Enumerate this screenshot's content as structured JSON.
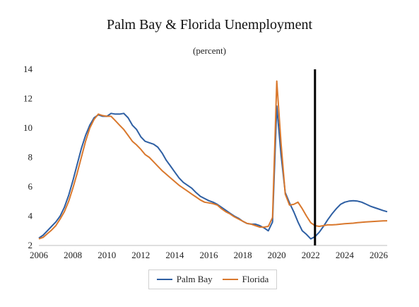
{
  "chart_data": {
    "type": "line",
    "title": "Palm Bay & Florida Unemployment",
    "subtitle": "(percent)",
    "xlabel": "",
    "ylabel": "",
    "xlim": [
      2006,
      2026.5
    ],
    "ylim": [
      2,
      14
    ],
    "x_ticks": [
      "2006",
      "2008",
      "2010",
      "2012",
      "2014",
      "2016",
      "2018",
      "2020",
      "2022",
      "2024",
      "2026"
    ],
    "y_ticks": [
      "2",
      "4",
      "6",
      "8",
      "10",
      "12",
      "14"
    ],
    "grid": false,
    "legend_position": "bottom-center",
    "vertical_marker_x": 2022.25,
    "series": [
      {
        "name": "Palm Bay",
        "color": "#2e5fa3",
        "points": [
          [
            2006.0,
            2.5
          ],
          [
            2006.25,
            2.7
          ],
          [
            2006.5,
            3.0
          ],
          [
            2006.75,
            3.3
          ],
          [
            2007.0,
            3.6
          ],
          [
            2007.25,
            4.0
          ],
          [
            2007.5,
            4.6
          ],
          [
            2007.75,
            5.4
          ],
          [
            2008.0,
            6.4
          ],
          [
            2008.25,
            7.5
          ],
          [
            2008.5,
            8.6
          ],
          [
            2008.75,
            9.5
          ],
          [
            2009.0,
            10.2
          ],
          [
            2009.25,
            10.7
          ],
          [
            2009.5,
            10.9
          ],
          [
            2009.75,
            10.8
          ],
          [
            2010.0,
            10.8
          ],
          [
            2010.25,
            11.0
          ],
          [
            2010.5,
            10.95
          ],
          [
            2010.75,
            10.95
          ],
          [
            2011.0,
            11.0
          ],
          [
            2011.25,
            10.7
          ],
          [
            2011.5,
            10.2
          ],
          [
            2011.75,
            9.9
          ],
          [
            2012.0,
            9.4
          ],
          [
            2012.25,
            9.1
          ],
          [
            2012.5,
            9.0
          ],
          [
            2012.75,
            8.9
          ],
          [
            2013.0,
            8.7
          ],
          [
            2013.25,
            8.3
          ],
          [
            2013.5,
            7.8
          ],
          [
            2013.75,
            7.4
          ],
          [
            2014.0,
            7.0
          ],
          [
            2014.25,
            6.6
          ],
          [
            2014.5,
            6.3
          ],
          [
            2014.75,
            6.1
          ],
          [
            2015.0,
            5.9
          ],
          [
            2015.25,
            5.6
          ],
          [
            2015.5,
            5.35
          ],
          [
            2015.75,
            5.2
          ],
          [
            2016.0,
            5.05
          ],
          [
            2016.25,
            4.95
          ],
          [
            2016.5,
            4.8
          ],
          [
            2016.75,
            4.6
          ],
          [
            2017.0,
            4.4
          ],
          [
            2017.25,
            4.2
          ],
          [
            2017.5,
            4.0
          ],
          [
            2017.75,
            3.85
          ],
          [
            2018.0,
            3.65
          ],
          [
            2018.25,
            3.5
          ],
          [
            2018.5,
            3.45
          ],
          [
            2018.75,
            3.45
          ],
          [
            2019.0,
            3.35
          ],
          [
            2019.25,
            3.2
          ],
          [
            2019.5,
            3.0
          ],
          [
            2019.75,
            3.6
          ],
          [
            2020.0,
            11.5
          ],
          [
            2020.25,
            8.2
          ],
          [
            2020.5,
            5.6
          ],
          [
            2020.75,
            4.9
          ],
          [
            2021.0,
            4.3
          ],
          [
            2021.25,
            3.6
          ],
          [
            2021.5,
            3.0
          ],
          [
            2021.75,
            2.75
          ],
          [
            2022.0,
            2.45
          ],
          [
            2022.25,
            2.6
          ],
          [
            2022.5,
            2.9
          ],
          [
            2022.75,
            3.3
          ],
          [
            2023.0,
            3.75
          ],
          [
            2023.25,
            4.15
          ],
          [
            2023.5,
            4.5
          ],
          [
            2023.75,
            4.8
          ],
          [
            2024.0,
            4.95
          ],
          [
            2024.25,
            5.02
          ],
          [
            2024.5,
            5.05
          ],
          [
            2024.75,
            5.02
          ],
          [
            2025.0,
            4.95
          ],
          [
            2025.25,
            4.82
          ],
          [
            2025.5,
            4.68
          ],
          [
            2025.75,
            4.58
          ],
          [
            2026.0,
            4.48
          ],
          [
            2026.25,
            4.38
          ],
          [
            2026.5,
            4.3
          ]
        ]
      },
      {
        "name": "Florida",
        "color": "#d9782d",
        "points": [
          [
            2006.0,
            2.45
          ],
          [
            2006.25,
            2.55
          ],
          [
            2006.5,
            2.8
          ],
          [
            2006.75,
            3.05
          ],
          [
            2007.0,
            3.35
          ],
          [
            2007.25,
            3.8
          ],
          [
            2007.5,
            4.3
          ],
          [
            2007.75,
            5.0
          ],
          [
            2008.0,
            5.9
          ],
          [
            2008.25,
            6.9
          ],
          [
            2008.5,
            8.0
          ],
          [
            2008.75,
            9.1
          ],
          [
            2009.0,
            10.0
          ],
          [
            2009.25,
            10.6
          ],
          [
            2009.5,
            10.95
          ],
          [
            2009.75,
            10.85
          ],
          [
            2010.0,
            10.8
          ],
          [
            2010.25,
            10.8
          ],
          [
            2010.5,
            10.5
          ],
          [
            2010.75,
            10.2
          ],
          [
            2011.0,
            9.9
          ],
          [
            2011.25,
            9.5
          ],
          [
            2011.5,
            9.1
          ],
          [
            2011.75,
            8.85
          ],
          [
            2012.0,
            8.55
          ],
          [
            2012.25,
            8.2
          ],
          [
            2012.5,
            8.0
          ],
          [
            2012.75,
            7.7
          ],
          [
            2013.0,
            7.4
          ],
          [
            2013.25,
            7.1
          ],
          [
            2013.5,
            6.85
          ],
          [
            2013.75,
            6.6
          ],
          [
            2014.0,
            6.35
          ],
          [
            2014.25,
            6.1
          ],
          [
            2014.5,
            5.9
          ],
          [
            2014.75,
            5.7
          ],
          [
            2015.0,
            5.5
          ],
          [
            2015.25,
            5.3
          ],
          [
            2015.5,
            5.1
          ],
          [
            2015.75,
            4.95
          ],
          [
            2016.0,
            4.9
          ],
          [
            2016.25,
            4.85
          ],
          [
            2016.5,
            4.75
          ],
          [
            2016.75,
            4.5
          ],
          [
            2017.0,
            4.3
          ],
          [
            2017.25,
            4.15
          ],
          [
            2017.5,
            3.95
          ],
          [
            2017.75,
            3.8
          ],
          [
            2018.0,
            3.65
          ],
          [
            2018.25,
            3.5
          ],
          [
            2018.5,
            3.45
          ],
          [
            2018.75,
            3.35
          ],
          [
            2019.0,
            3.25
          ],
          [
            2019.25,
            3.25
          ],
          [
            2019.5,
            3.3
          ],
          [
            2019.75,
            3.9
          ],
          [
            2020.0,
            13.2
          ],
          [
            2020.25,
            9.0
          ],
          [
            2020.5,
            5.5
          ],
          [
            2020.75,
            4.75
          ],
          [
            2021.0,
            4.8
          ],
          [
            2021.25,
            4.95
          ],
          [
            2021.5,
            4.5
          ],
          [
            2021.75,
            4.0
          ],
          [
            2022.0,
            3.55
          ],
          [
            2022.25,
            3.35
          ],
          [
            2022.5,
            3.3
          ],
          [
            2022.75,
            3.35
          ],
          [
            2023.0,
            3.4
          ],
          [
            2023.25,
            3.4
          ],
          [
            2023.5,
            3.42
          ],
          [
            2023.75,
            3.45
          ],
          [
            2024.0,
            3.48
          ],
          [
            2024.25,
            3.5
          ],
          [
            2024.5,
            3.52
          ],
          [
            2024.75,
            3.55
          ],
          [
            2025.0,
            3.58
          ],
          [
            2025.25,
            3.6
          ],
          [
            2025.5,
            3.62
          ],
          [
            2025.75,
            3.64
          ],
          [
            2026.0,
            3.66
          ],
          [
            2026.25,
            3.67
          ],
          [
            2026.5,
            3.68
          ]
        ]
      }
    ]
  }
}
